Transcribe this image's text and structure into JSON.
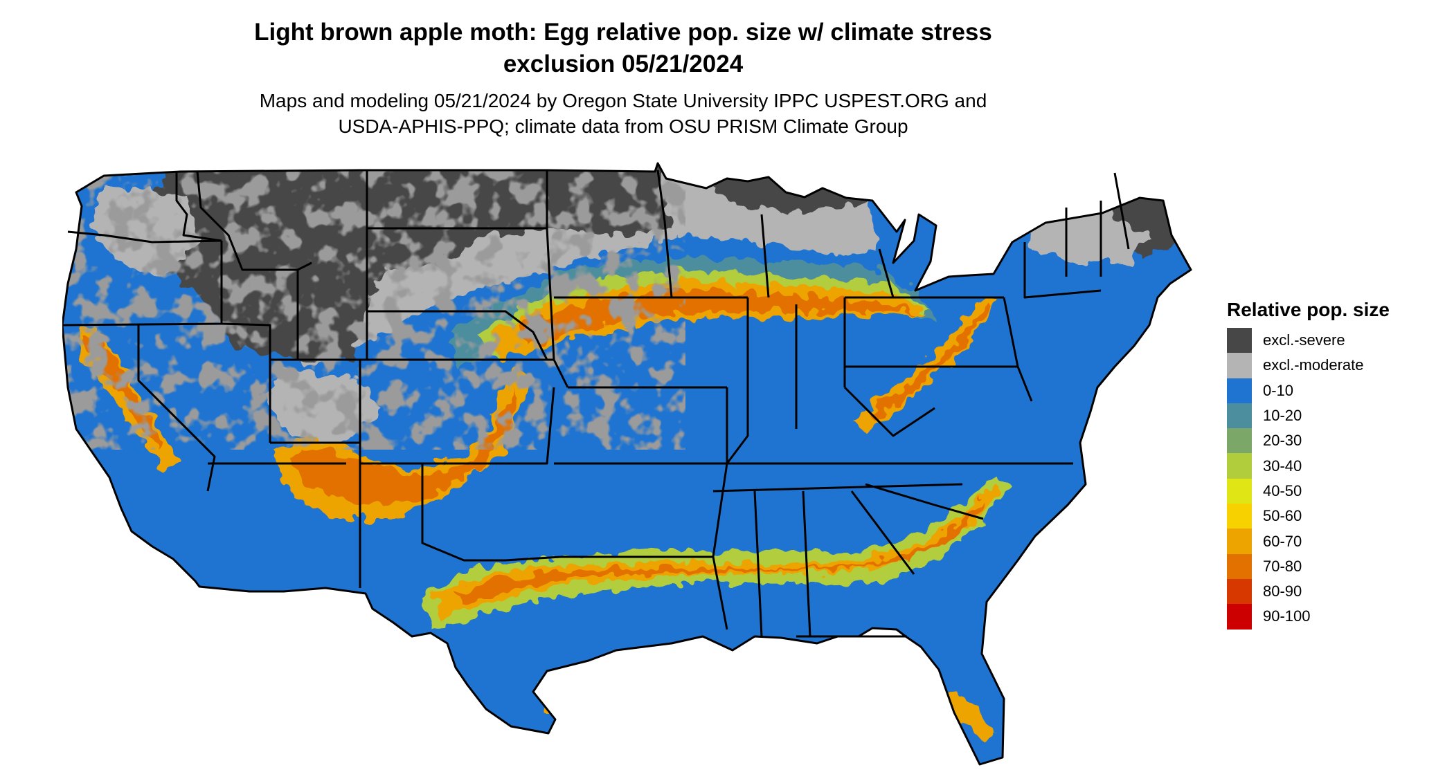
{
  "title": {
    "line1": "Light brown apple moth: Egg relative pop. size w/ climate stress",
    "line2": "exclusion 05/21/2024"
  },
  "subtitle": {
    "line1": "Maps and modeling 05/21/2024 by Oregon State University IPPC USPEST.ORG and",
    "line2": "USDA-APHIS-PPQ; climate data from OSU PRISM Climate Group"
  },
  "legend": {
    "title": "Relative pop. size",
    "items": [
      {
        "label": "excl.-severe",
        "color": "#474747"
      },
      {
        "label": "excl.-moderate",
        "color": "#b4b4b4"
      },
      {
        "label": "0-10",
        "color": "#1f74d1"
      },
      {
        "label": "10-20",
        "color": "#4d8e9e"
      },
      {
        "label": "20-30",
        "color": "#7ba868"
      },
      {
        "label": "30-40",
        "color": "#b2cd3c"
      },
      {
        "label": "40-50",
        "color": "#e0e616"
      },
      {
        "label": "50-60",
        "color": "#f7d200"
      },
      {
        "label": "60-70",
        "color": "#eea400"
      },
      {
        "label": "70-80",
        "color": "#e27100"
      },
      {
        "label": "80-90",
        "color": "#d63800"
      },
      {
        "label": "90-100",
        "color": "#cc0000"
      }
    ]
  },
  "map": {
    "region": "contiguous-united-states",
    "colors": {
      "excl_severe": "#474747",
      "excl_moderate": "#b4b4b4",
      "base": "#1f74d1",
      "low": "#4d8e9e",
      "mid": "#b2cd3c",
      "high": "#eea400",
      "peak": "#e27100",
      "border": "#000000"
    }
  }
}
